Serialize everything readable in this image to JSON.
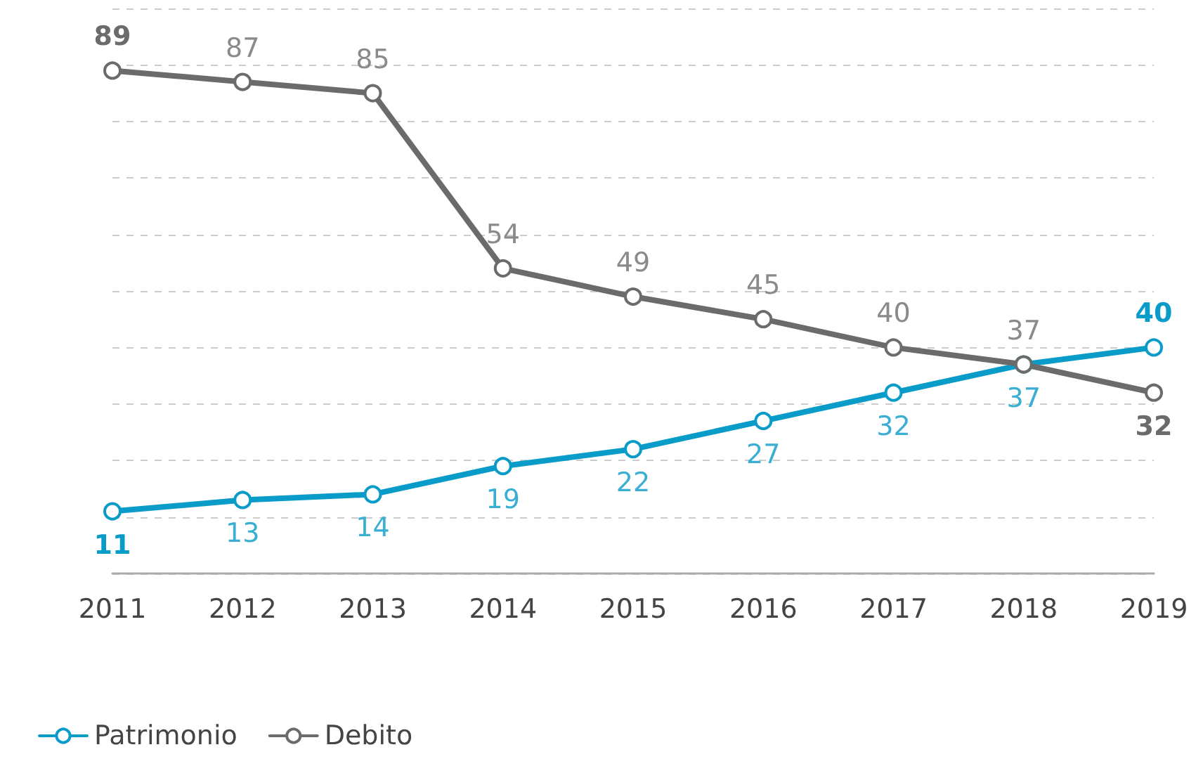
{
  "chart_data": {
    "type": "line",
    "categories": [
      "2011",
      "2012",
      "2013",
      "2014",
      "2015",
      "2016",
      "2017",
      "2018",
      "2019"
    ],
    "series": [
      {
        "name": "Patrimonio",
        "color": "#0a9cc8",
        "values": [
          11,
          13,
          14,
          19,
          22,
          27,
          32,
          37,
          40
        ]
      },
      {
        "name": "Debito",
        "color": "#6b6b6b",
        "values": [
          89,
          87,
          85,
          54,
          49,
          45,
          40,
          37,
          32
        ]
      }
    ],
    "ylim": [
      0,
      100
    ],
    "yticks": [
      {
        "value": 0,
        "label": null
      },
      {
        "value": 10,
        "label": null
      },
      {
        "value": 20,
        "label": null
      },
      {
        "value": 30,
        "label": null
      },
      {
        "value": 40,
        "label": null
      },
      {
        "value": 50,
        "label": null
      },
      {
        "value": 60,
        "label": null
      },
      {
        "value": 70,
        "label": null
      },
      {
        "value": 80,
        "label": null
      },
      {
        "value": 90,
        "label": null
      },
      {
        "value": 100,
        "label": null
      }
    ],
    "tick_labels": "x",
    "grid": "y",
    "data_labels": true,
    "legend": "bottom left",
    "marker": "circle",
    "line_style": "solid"
  }
}
